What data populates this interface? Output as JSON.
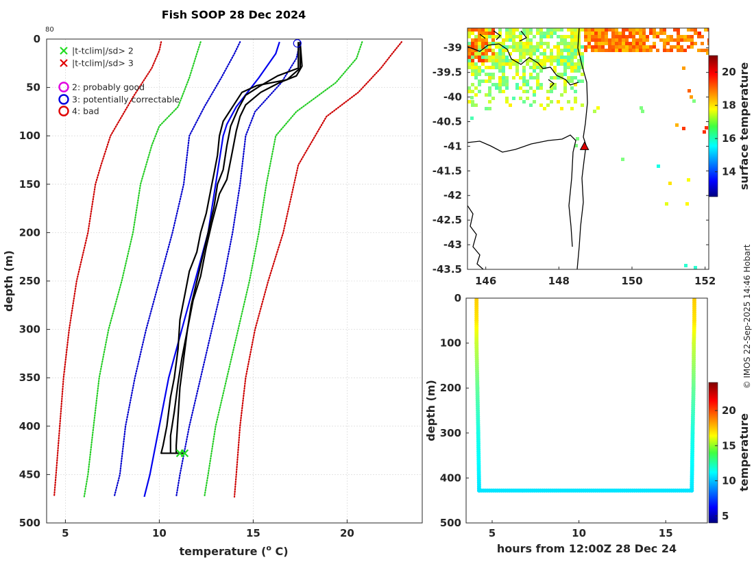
{
  "chart_data": [
    {
      "type": "line",
      "title": "Fish SOOP 28 Dec 2024",
      "xlabel": "temperature (",
      "xlabel_sup": "o",
      "xlabel_end": " C)",
      "ylabel": "depth (m)",
      "xlim": [
        4,
        24
      ],
      "ylim": [
        0,
        500
      ],
      "xticks": [
        5,
        10,
        15,
        20
      ],
      "yticks": [
        0,
        50,
        100,
        150,
        200,
        250,
        300,
        350,
        400,
        450,
        500
      ],
      "corner_label": "80",
      "legend": [
        {
          "label": "|t-tclim|/sd> 2",
          "marker": "x",
          "color": "#22dd22"
        },
        {
          "label": "|t-tclim|/sd> 3",
          "marker": "x",
          "color": "#e00000"
        },
        {
          "label": "2: probably good",
          "marker": "o",
          "color": "#e000e0"
        },
        {
          "label": "3: potentially correctable",
          "marker": "o",
          "color": "#0000e0"
        },
        {
          "label": "4: bad",
          "marker": "o",
          "color": "#e00000"
        }
      ],
      "climatology": [
        {
          "name": "clim-mean-minus-3sd",
          "style": "dotted",
          "color": "#cc0000",
          "points": [
            [
              10.1,
              3
            ],
            [
              10.0,
              12
            ],
            [
              9.6,
              30
            ],
            [
              8.6,
              60
            ],
            [
              7.7,
              90
            ],
            [
              7.4,
              100
            ],
            [
              6.9,
              130
            ],
            [
              6.6,
              150
            ],
            [
              6.2,
              200
            ],
            [
              5.6,
              250
            ],
            [
              5.2,
              300
            ],
            [
              4.9,
              350
            ],
            [
              4.7,
              400
            ],
            [
              4.5,
              450
            ],
            [
              4.4,
              473
            ]
          ]
        },
        {
          "name": "clim-mean-minus-2sd",
          "style": "dotted",
          "color": "#22cc22",
          "points": [
            [
              12.2,
              3
            ],
            [
              12.0,
              15
            ],
            [
              11.6,
              40
            ],
            [
              11.0,
              70
            ],
            [
              10.0,
              90
            ],
            [
              9.6,
              110
            ],
            [
              9.0,
              150
            ],
            [
              8.6,
              200
            ],
            [
              8.0,
              250
            ],
            [
              7.3,
              300
            ],
            [
              6.8,
              350
            ],
            [
              6.5,
              400
            ],
            [
              6.2,
              450
            ],
            [
              6.0,
              473
            ]
          ]
        },
        {
          "name": "clim-mean-minus-1sd",
          "style": "dotted",
          "color": "#0000cc",
          "points": [
            [
              14.3,
              3
            ],
            [
              14.0,
              15
            ],
            [
              13.3,
              40
            ],
            [
              12.4,
              70
            ],
            [
              11.6,
              100
            ],
            [
              11.3,
              150
            ],
            [
              10.7,
              200
            ],
            [
              10.0,
              250
            ],
            [
              9.3,
              300
            ],
            [
              8.7,
              350
            ],
            [
              8.2,
              400
            ],
            [
              7.9,
              450
            ],
            [
              7.6,
              473
            ]
          ]
        },
        {
          "name": "clim-mean",
          "style": "solid",
          "color": "#0000ee",
          "points": [
            [
              16.4,
              3
            ],
            [
              16.2,
              15
            ],
            [
              15.3,
              40
            ],
            [
              14.1,
              70
            ],
            [
              13.6,
              88
            ],
            [
              13.4,
              100
            ],
            [
              13.0,
              150
            ],
            [
              12.6,
              200
            ],
            [
              11.9,
              250
            ],
            [
              11.2,
              300
            ],
            [
              10.5,
              350
            ],
            [
              10.0,
              400
            ],
            [
              9.5,
              450
            ],
            [
              9.2,
              473
            ]
          ]
        },
        {
          "name": "clim-mean-plus-1sd",
          "style": "dotted",
          "color": "#0000cc",
          "points": [
            [
              17.5,
              3
            ],
            [
              17.3,
              20
            ],
            [
              16.5,
              45
            ],
            [
              15.1,
              75
            ],
            [
              14.6,
              100
            ],
            [
              14.3,
              150
            ],
            [
              13.9,
              200
            ],
            [
              13.4,
              250
            ],
            [
              12.8,
              300
            ],
            [
              12.2,
              350
            ],
            [
              11.6,
              400
            ],
            [
              11.1,
              450
            ],
            [
              10.9,
              473
            ]
          ]
        },
        {
          "name": "clim-mean-plus-2sd",
          "style": "dotted",
          "color": "#22cc22",
          "points": [
            [
              20.8,
              3
            ],
            [
              20.5,
              20
            ],
            [
              19.4,
              45
            ],
            [
              17.3,
              75
            ],
            [
              16.2,
              100
            ],
            [
              15.7,
              150
            ],
            [
              15.3,
              200
            ],
            [
              14.8,
              250
            ],
            [
              14.2,
              300
            ],
            [
              13.6,
              350
            ],
            [
              13.0,
              400
            ],
            [
              12.6,
              450
            ],
            [
              12.4,
              473
            ]
          ]
        },
        {
          "name": "clim-mean-plus-3sd",
          "style": "dotted",
          "color": "#cc0000",
          "points": [
            [
              22.9,
              3
            ],
            [
              22.4,
              15
            ],
            [
              21.8,
              30
            ],
            [
              20.6,
              55
            ],
            [
              18.9,
              80
            ],
            [
              17.4,
              130
            ],
            [
              16.6,
              200
            ],
            [
              15.8,
              250
            ],
            [
              15.1,
              300
            ],
            [
              14.6,
              350
            ],
            [
              14.3,
              400
            ],
            [
              14.1,
              450
            ],
            [
              14.0,
              473
            ]
          ]
        }
      ],
      "profiles": [
        {
          "name": "observed-profile-1",
          "color": "#000000",
          "points": [
            [
              17.5,
              3
            ],
            [
              17.5,
              30
            ],
            [
              16.8,
              42
            ],
            [
              15.2,
              48
            ],
            [
              14.4,
              55
            ],
            [
              13.9,
              70
            ],
            [
              13.4,
              85
            ],
            [
              13.2,
              100
            ],
            [
              13.1,
              120
            ],
            [
              12.9,
              140
            ],
            [
              12.8,
              150
            ],
            [
              12.5,
              180
            ],
            [
              12.2,
              200
            ],
            [
              12.0,
              220
            ],
            [
              11.6,
              240
            ],
            [
              11.4,
              260
            ],
            [
              11.1,
              290
            ],
            [
              11.0,
              320
            ],
            [
              10.8,
              350
            ],
            [
              10.6,
              370
            ],
            [
              10.4,
              400
            ],
            [
              10.2,
              420
            ],
            [
              10.1,
              428
            ],
            [
              10.9,
              428
            ]
          ]
        },
        {
          "name": "observed-profile-2",
          "color": "#000000",
          "points": [
            [
              17.4,
              3
            ],
            [
              17.4,
              30
            ],
            [
              16.3,
              38
            ],
            [
              15.4,
              48
            ],
            [
              14.6,
              58
            ],
            [
              14.2,
              72
            ],
            [
              13.8,
              90
            ],
            [
              13.6,
              110
            ],
            [
              13.4,
              135
            ],
            [
              13.1,
              150
            ],
            [
              12.9,
              175
            ],
            [
              12.6,
              200
            ],
            [
              12.3,
              225
            ],
            [
              12.0,
              250
            ],
            [
              11.7,
              275
            ],
            [
              11.5,
              300
            ],
            [
              11.3,
              330
            ],
            [
              11.1,
              360
            ],
            [
              11.0,
              390
            ],
            [
              10.9,
              420
            ],
            [
              10.9,
              428
            ],
            [
              11.4,
              428
            ]
          ]
        },
        {
          "name": "observed-profile-3",
          "color": "#000000",
          "points": [
            [
              17.5,
              3
            ],
            [
              17.6,
              28
            ],
            [
              17.3,
              38
            ],
            [
              16.4,
              45
            ],
            [
              15.4,
              55
            ],
            [
              14.6,
              68
            ],
            [
              14.3,
              80
            ],
            [
              14.1,
              95
            ],
            [
              13.9,
              115
            ],
            [
              13.7,
              135
            ],
            [
              13.6,
              145
            ],
            [
              13.2,
              160
            ],
            [
              12.8,
              190
            ],
            [
              12.5,
              215
            ],
            [
              12.2,
              245
            ],
            [
              11.8,
              270
            ],
            [
              11.5,
              300
            ],
            [
              11.2,
              330
            ],
            [
              11.0,
              355
            ],
            [
              10.8,
              385
            ],
            [
              10.6,
              410
            ],
            [
              10.6,
              428
            ]
          ]
        }
      ],
      "qc_flags": [
        {
          "name": "flag-potentially-correctable",
          "marker": "o",
          "color": "#0000e0",
          "x": 17.35,
          "y": 3
        },
        {
          "name": "flag-sd2-a",
          "marker": "x",
          "color": "#22dd22",
          "x": 11.1,
          "y": 428
        },
        {
          "name": "flag-sd2-b",
          "marker": "x",
          "color": "#22dd22",
          "x": 11.35,
          "y": 428
        }
      ]
    },
    {
      "type": "heatmap",
      "ylabel": "",
      "xlim": [
        145.5,
        152.1
      ],
      "ylim": [
        -43.5,
        -38.6
      ],
      "xticks": [
        146,
        148,
        150,
        152
      ],
      "yticks": [
        -39,
        -39.5,
        -40,
        -40.5,
        -41,
        -41.5,
        -42,
        -42.5,
        -43,
        -43.5
      ],
      "colorbar_label": "surface temperature",
      "colorbar_range": [
        12.5,
        21
      ],
      "colorbar_ticks": [
        14,
        16,
        18,
        20
      ],
      "station": {
        "lon": 148.7,
        "lat": -41.0,
        "marker": "triangle",
        "color": "#dd0000"
      }
    },
    {
      "type": "scatter",
      "xlabel": "hours from 12:00Z 28 Dec 24",
      "ylabel": "depth (m)",
      "xlim": [
        3.5,
        17.4
      ],
      "ylim": [
        0,
        500
      ],
      "xticks": [
        5,
        10,
        15
      ],
      "yticks": [
        0,
        100,
        200,
        300,
        400,
        500
      ],
      "colorbar_label": "temperature",
      "colorbar_range": [
        4,
        24
      ],
      "colorbar_ticks": [
        5,
        10,
        15,
        20
      ],
      "track": [
        {
          "hour": 4.1,
          "depth": 0,
          "temp": 17.5
        },
        {
          "hour": 4.1,
          "depth": 50,
          "temp": 17.0
        },
        {
          "hour": 4.1,
          "depth": 100,
          "temp": 15.5
        },
        {
          "hour": 4.15,
          "depth": 200,
          "temp": 13.5
        },
        {
          "hour": 4.2,
          "depth": 300,
          "temp": 12.0
        },
        {
          "hour": 4.25,
          "depth": 428,
          "temp": 11.0
        },
        {
          "hour": 16.5,
          "depth": 428,
          "temp": 11.0
        },
        {
          "hour": 16.55,
          "depth": 300,
          "temp": 12.0
        },
        {
          "hour": 16.6,
          "depth": 200,
          "temp": 13.5
        },
        {
          "hour": 16.62,
          "depth": 100,
          "temp": 15.5
        },
        {
          "hour": 16.65,
          "depth": 50,
          "temp": 17.0
        },
        {
          "hour": 16.65,
          "depth": 0,
          "temp": 17.5
        }
      ]
    }
  ],
  "credit": "© IMOS 22-Sep-2025 14:46 Hobart"
}
